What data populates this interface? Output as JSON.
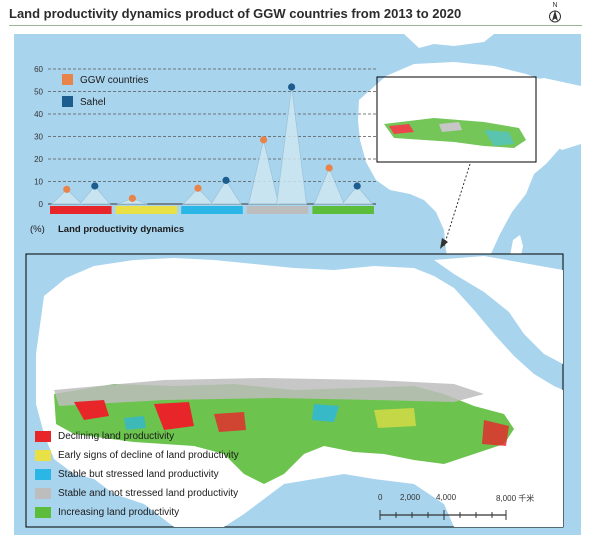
{
  "title": "Land productivity dynamics product of GGW countries from 2013 to 2020",
  "north_label": "N",
  "chart_data": {
    "type": "line",
    "title": "",
    "ylabel": "(%)",
    "xlabel": "Land productivity dynamics",
    "ylim": [
      0,
      60
    ],
    "yticks": [
      "0",
      "10",
      "20",
      "30",
      "40",
      "50",
      "60"
    ],
    "categories": [
      "Declining land productivity",
      "Early signs of decline of land productivity",
      "Stable but stressed land productivity",
      "Stable and not stressed land productivity",
      "Increasing land productivity"
    ],
    "category_colors": [
      "#e8262a",
      "#e9e045",
      "#2ab7e6",
      "#bdbdbd",
      "#5cbd3b"
    ],
    "series": [
      {
        "name": "GGW countries",
        "color": "#e8834a",
        "values": [
          6.5,
          2.5,
          7,
          28.5,
          16
        ]
      },
      {
        "name": "Sahel",
        "color": "#1c5c8e",
        "values": [
          8,
          0,
          10.5,
          52,
          8
        ]
      }
    ]
  },
  "legend": {
    "items": [
      {
        "label": "Declining land productivity",
        "color": "#e8262a"
      },
      {
        "label": "Early signs of decline of land productivity",
        "color": "#e9e045"
      },
      {
        "label": "Stable but stressed land productivity",
        "color": "#2ab7e6"
      },
      {
        "label": "Stable and not stressed land productivity",
        "color": "#bdbdbd"
      },
      {
        "label": "Increasing land productivity",
        "color": "#5cbd3b"
      }
    ]
  },
  "scale": {
    "labels": [
      "0",
      "2,000",
      "4,000",
      "8,000 千米"
    ]
  },
  "colors": {
    "sea": "#a9d4ee",
    "land": "#ffffff",
    "inset_frame": "#000000"
  }
}
